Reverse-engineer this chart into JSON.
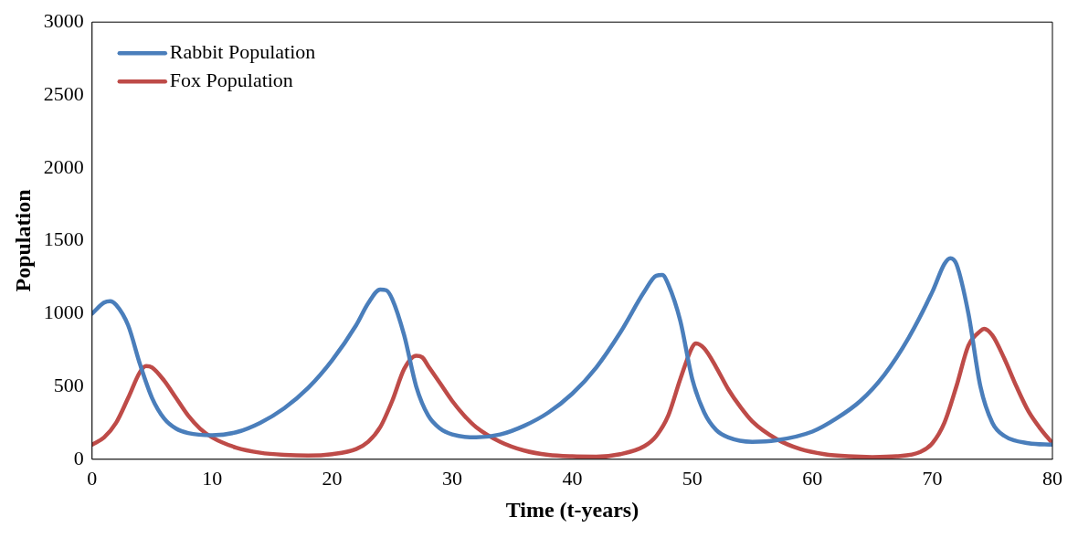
{
  "chart_data": {
    "type": "line",
    "xlabel": "Time (t-years)",
    "ylabel": "Population",
    "xlim": [
      0,
      80
    ],
    "xticks": [
      0,
      10,
      20,
      30,
      40,
      50,
      60,
      70,
      80
    ],
    "ylim": [
      0,
      3000
    ],
    "yticks": [
      0,
      500,
      1000,
      1500,
      2000,
      2500,
      3000
    ],
    "grid": false,
    "legend": "top left",
    "marker": "none",
    "line_style": "solid",
    "series": [
      {
        "name": "Rabbit Population",
        "color": "#4a7ebb",
        "x": [
          0,
          1,
          1.5,
          2,
          3,
          4,
          5,
          6,
          7,
          8,
          10,
          12,
          14,
          16,
          18,
          20,
          22,
          23,
          24,
          24.5,
          25,
          26,
          27,
          28,
          29,
          30,
          32,
          34,
          36,
          38,
          40,
          42,
          44,
          46,
          47,
          47.5,
          48,
          49,
          50,
          51,
          52,
          53,
          55,
          57,
          60,
          62,
          64,
          66,
          68,
          70,
          71,
          71.5,
          72,
          73,
          74,
          75,
          76,
          78,
          80
        ],
        "values": [
          1000,
          1075,
          1085,
          1060,
          920,
          650,
          420,
          280,
          210,
          180,
          165,
          185,
          250,
          350,
          490,
          680,
          920,
          1070,
          1165,
          1160,
          1100,
          850,
          500,
          300,
          210,
          170,
          150,
          170,
          230,
          320,
          450,
          630,
          870,
          1150,
          1260,
          1265,
          1200,
          950,
          550,
          320,
          200,
          150,
          120,
          130,
          190,
          280,
          400,
          580,
          830,
          1150,
          1340,
          1380,
          1340,
          1000,
          500,
          250,
          160,
          110,
          100
        ]
      },
      {
        "name": "Fox Population",
        "color": "#be4b48",
        "x": [
          0,
          1,
          2,
          3,
          4,
          4.5,
          5,
          6,
          7,
          8,
          9,
          10,
          12,
          14,
          16,
          18,
          20,
          22,
          23,
          24,
          25,
          26,
          27,
          27.5,
          28,
          29,
          30,
          31,
          32,
          34,
          36,
          38,
          40,
          42,
          44,
          46,
          47,
          48,
          49,
          50,
          50.3,
          51,
          52,
          53,
          54,
          55,
          57,
          59,
          61,
          63,
          65,
          67,
          69,
          70,
          71,
          72,
          73,
          74,
          74.3,
          75,
          76,
          77,
          78,
          79,
          80
        ],
        "values": [
          100,
          150,
          250,
          420,
          600,
          640,
          630,
          540,
          420,
          300,
          210,
          150,
          80,
          45,
          30,
          25,
          35,
          70,
          120,
          220,
          400,
          620,
          710,
          700,
          640,
          520,
          400,
          300,
          220,
          120,
          60,
          30,
          20,
          18,
          35,
          90,
          160,
          300,
          550,
          770,
          795,
          760,
          630,
          480,
          360,
          260,
          140,
          70,
          35,
          20,
          15,
          20,
          50,
          110,
          250,
          500,
          780,
          880,
          895,
          850,
          690,
          500,
          330,
          210,
          110
        ]
      }
    ]
  }
}
